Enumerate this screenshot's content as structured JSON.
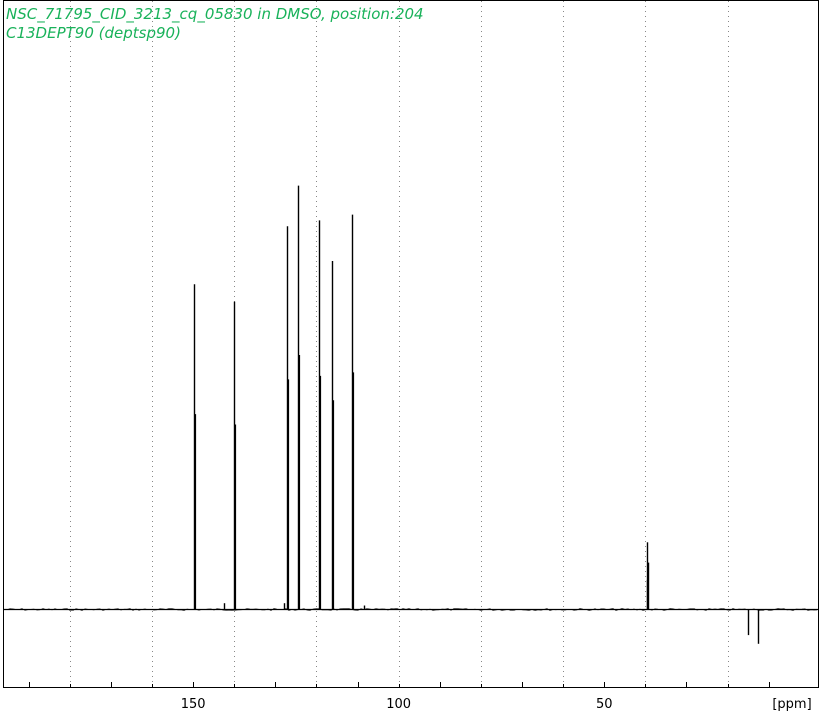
{
  "title": {
    "line1": "NSC_71795_CID_3213_cq_05830 in DMSO, position:204",
    "line2": "C13DEPT90 (deptsp90)"
  },
  "colors": {
    "title": "#19b25a",
    "grid": "#888888",
    "spectrum": "#000000",
    "frame": "#000000"
  },
  "chart_data": {
    "type": "line",
    "xlabel": "[ppm]",
    "x_reversed": true,
    "xlim": [
      -2,
      196
    ],
    "ylim": [
      -0.15,
      1.0
    ],
    "grid": "vertical dotted",
    "ticks": [
      {
        "value": 150,
        "label": "150"
      },
      {
        "value": 100,
        "label": "100"
      },
      {
        "value": 50,
        "label": "50"
      }
    ],
    "grid_ppm": [
      180,
      160,
      140,
      120,
      100,
      80,
      60,
      40,
      20
    ],
    "minor_tick_ppm": [
      190,
      170,
      150,
      130,
      110,
      90,
      70,
      50,
      30,
      10
    ],
    "peaks": [
      {
        "ppm": 149.7,
        "intensity": 0.56
      },
      {
        "ppm": 140.0,
        "intensity": 0.53
      },
      {
        "ppm": 127.2,
        "intensity": 0.66
      },
      {
        "ppm": 124.4,
        "intensity": 0.73
      },
      {
        "ppm": 119.5,
        "intensity": 0.67
      },
      {
        "ppm": 116.3,
        "intensity": 0.6
      },
      {
        "ppm": 111.3,
        "intensity": 0.68
      },
      {
        "ppm": 142.5,
        "intensity": 0.01
      },
      {
        "ppm": 128.0,
        "intensity": 0.01
      },
      {
        "ppm": 108.5,
        "intensity": 0.006
      },
      {
        "ppm": 39.5,
        "intensity": 0.115
      },
      {
        "ppm": 39.3,
        "intensity": 0.08
      },
      {
        "ppm": 39.7,
        "intensity": 0.05
      },
      {
        "ppm": 15.0,
        "intensity": -0.045
      },
      {
        "ppm": 12.6,
        "intensity": -0.06
      }
    ]
  }
}
